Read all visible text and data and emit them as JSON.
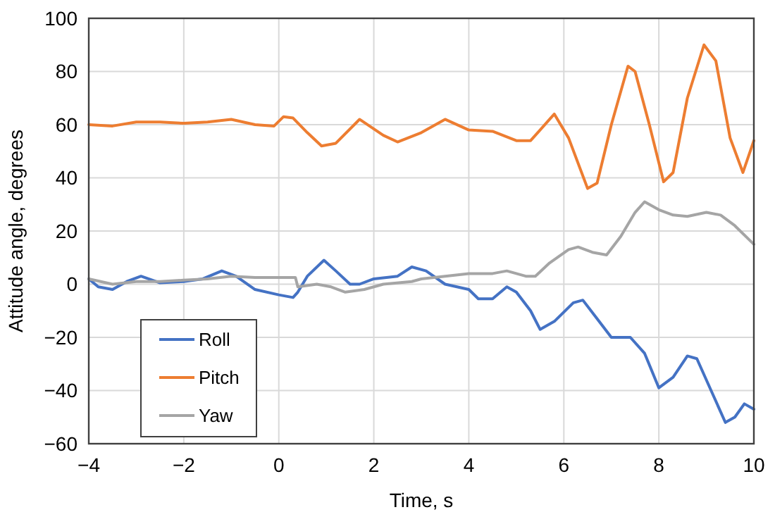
{
  "chart_data": {
    "type": "line",
    "xlabel": "Time, s",
    "ylabel": "Attitude angle, degrees",
    "xlim": [
      -4,
      10
    ],
    "ylim": [
      -60,
      100
    ],
    "xticks": [
      {
        "value": -4,
        "label": "−4"
      },
      {
        "value": -2,
        "label": "−2"
      },
      0,
      2,
      4,
      6,
      8,
      10
    ],
    "yticks": [
      {
        "value": -60,
        "label": "−60"
      },
      {
        "value": -40,
        "label": "−40"
      },
      {
        "value": -20,
        "label": "−20"
      },
      0,
      20,
      40,
      60,
      80,
      100
    ],
    "grid": true,
    "legend": "bottom left",
    "marker": "none",
    "line_style": "solid",
    "series": [
      {
        "name": "Roll",
        "color": "#4472c4",
        "x": [
          -4,
          -3.8,
          -3.5,
          -3.2,
          -2.9,
          -2.5,
          -2,
          -1.6,
          -1.2,
          -0.9,
          -0.5,
          0,
          0.3,
          0.4,
          0.6,
          0.95,
          1.2,
          1.5,
          1.7,
          2,
          2.5,
          2.8,
          3.1,
          3.5,
          4,
          4.2,
          4.5,
          4.8,
          5,
          5.3,
          5.5,
          5.8,
          6.2,
          6.4,
          6.7,
          7,
          7.4,
          7.7,
          8,
          8.3,
          8.6,
          8.8,
          9.1,
          9.4,
          9.6,
          9.8,
          10
        ],
        "values": [
          2,
          -1,
          -2,
          1,
          3,
          0.5,
          1,
          2,
          5,
          3,
          -2,
          -4,
          -5,
          -3,
          3,
          9,
          5,
          0,
          0,
          2,
          3,
          6.5,
          5,
          0,
          -2,
          -5.5,
          -5.5,
          -1,
          -3,
          -10,
          -17,
          -14,
          -7,
          -6,
          -13,
          -20,
          -20,
          -26,
          -39,
          -35,
          -27,
          -28,
          -40,
          -52,
          -50,
          -45,
          -47
        ]
      },
      {
        "name": "Pitch",
        "color": "#ed7d31",
        "x": [
          -4,
          -3.5,
          -3,
          -2.5,
          -2,
          -1.5,
          -1,
          -0.5,
          -0.1,
          0.1,
          0.3,
          0.6,
          0.9,
          1.2,
          1.7,
          2.2,
          2.5,
          3,
          3.5,
          4,
          4.5,
          5,
          5.3,
          5.7,
          5.8,
          6.1,
          6.5,
          6.7,
          7,
          7.35,
          7.5,
          7.8,
          8.1,
          8.3,
          8.6,
          8.95,
          9.2,
          9.5,
          9.77,
          10
        ],
        "values": [
          60,
          59.5,
          61,
          61,
          60.5,
          61,
          62,
          60,
          59.5,
          63,
          62.5,
          57,
          52,
          53,
          62,
          56,
          53.5,
          57,
          62,
          58,
          57.5,
          54,
          54,
          62,
          64,
          55,
          36,
          38,
          60,
          82,
          80,
          60,
          38.5,
          42,
          70,
          90,
          84,
          55,
          42,
          54
        ]
      },
      {
        "name": "Yaw",
        "color": "#a5a5a5",
        "x": [
          -4,
          -3.5,
          -3,
          -2.5,
          -2,
          -1.5,
          -1,
          -0.5,
          0.35,
          0.4,
          0.8,
          1.1,
          1.4,
          1.8,
          2.2,
          2.8,
          3,
          3.5,
          4,
          4.5,
          4.8,
          5.2,
          5.4,
          5.7,
          6.1,
          6.3,
          6.6,
          6.9,
          7.2,
          7.5,
          7.7,
          8,
          8.3,
          8.6,
          9,
          9.3,
          9.6,
          10
        ],
        "values": [
          2,
          0,
          1,
          1,
          1.5,
          2,
          3,
          2.5,
          2.5,
          -1,
          0,
          -1,
          -3,
          -2,
          0,
          1,
          2,
          3,
          4,
          4,
          5,
          3,
          3,
          8,
          13,
          14,
          12,
          11,
          18,
          27,
          31,
          28,
          26,
          25.5,
          27,
          26,
          22,
          15
        ]
      }
    ]
  }
}
